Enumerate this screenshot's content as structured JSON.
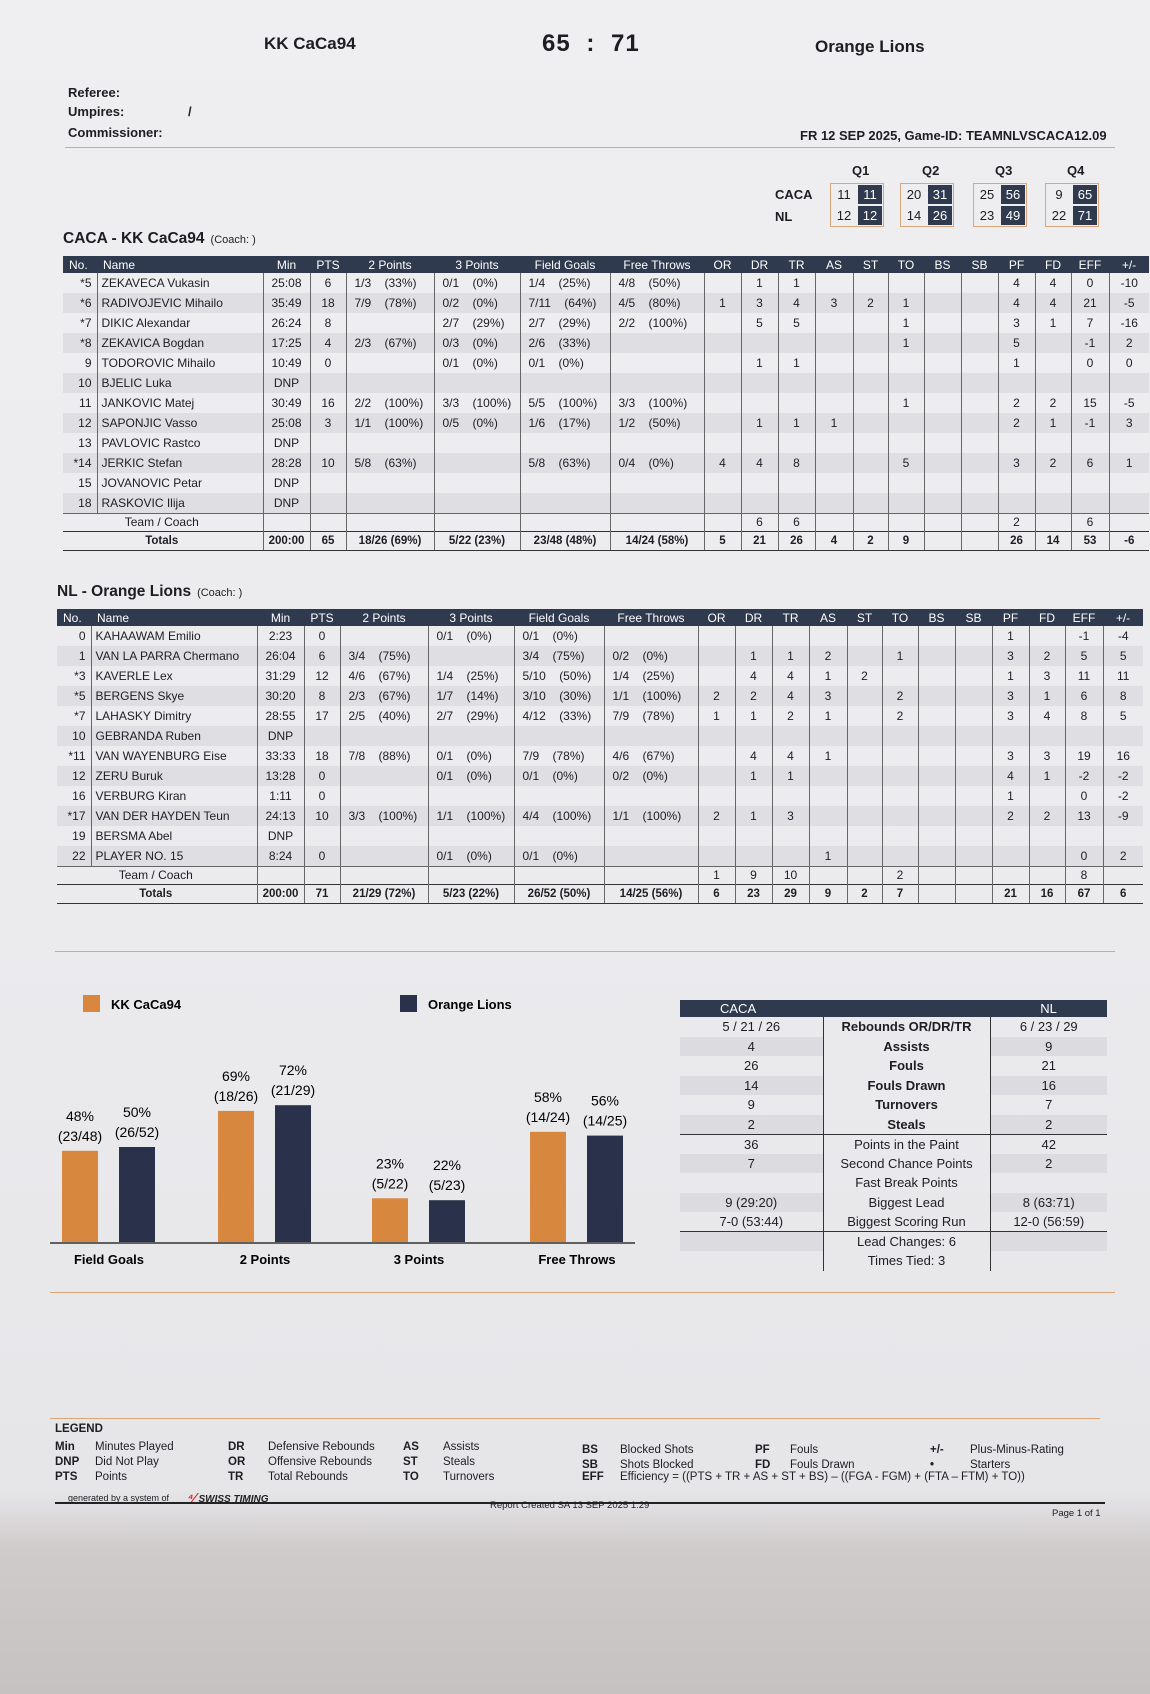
{
  "header": {
    "home": "KK CaCa94",
    "score_home": "65",
    "score_sep": ":",
    "score_away": "71",
    "away": "Orange Lions"
  },
  "officials": {
    "referee": "Referee:",
    "umpires": "Umpires:",
    "umpires_value": "/",
    "commissioner": "Commissioner:"
  },
  "game_info": "FR 12 SEP 2025,  Game-ID: TEAMNLVSCACA12.09",
  "quarters": {
    "labels": [
      "Q1",
      "Q2",
      "Q3",
      "Q4"
    ],
    "teams": [
      {
        "code": "CACA",
        "scores": [
          [
            "11",
            "11"
          ],
          [
            "20",
            "31"
          ],
          [
            "25",
            "56"
          ],
          [
            "9",
            "65"
          ]
        ]
      },
      {
        "code": "NL",
        "scores": [
          [
            "12",
            "12"
          ],
          [
            "14",
            "26"
          ],
          [
            "23",
            "49"
          ],
          [
            "22",
            "71"
          ]
        ]
      }
    ]
  },
  "columns": [
    "No.",
    "Name",
    "Min",
    "PTS",
    "2 Points",
    "3 Points",
    "Field Goals",
    "Free Throws",
    "OR",
    "DR",
    "TR",
    "AS",
    "ST",
    "TO",
    "BS",
    "SB",
    "PF",
    "FD",
    "EFF",
    "+/-"
  ],
  "teams": [
    {
      "title": "CACA - KK CaCa94",
      "coach": "(Coach: )",
      "players": [
        [
          "*5",
          "ZEKAVECA Vukasin",
          "25:08",
          "6",
          "1/3 (33%)",
          "0/1 (0%)",
          "1/4 (25%)",
          "4/8 (50%)",
          "",
          "1",
          "1",
          "",
          "",
          "",
          "",
          "",
          "4",
          "4",
          "0",
          "-10"
        ],
        [
          "*6",
          "RADIVOJEVIC Mihailo",
          "35:49",
          "18",
          "7/9 (78%)",
          "0/2 (0%)",
          "7/11 (64%)",
          "4/5 (80%)",
          "1",
          "3",
          "4",
          "3",
          "2",
          "1",
          "",
          "",
          "4",
          "4",
          "21",
          "-5"
        ],
        [
          "*7",
          "DIKIC Alexandar",
          "26:24",
          "8",
          "",
          "2/7 (29%)",
          "2/7 (29%)",
          "2/2 (100%)",
          "",
          "5",
          "5",
          "",
          "",
          "1",
          "",
          "",
          "3",
          "1",
          "7",
          "-16"
        ],
        [
          "*8",
          "ZEKAVICA Bogdan",
          "17:25",
          "4",
          "2/3 (67%)",
          "0/3 (0%)",
          "2/6 (33%)",
          "",
          "",
          "",
          "",
          "",
          "",
          "1",
          "",
          "",
          "5",
          "",
          "-1",
          "2"
        ],
        [
          "9",
          "TODOROVIC Mihailo",
          "10:49",
          "0",
          "",
          "0/1 (0%)",
          "0/1 (0%)",
          "",
          "",
          "1",
          "1",
          "",
          "",
          "",
          "",
          "",
          "1",
          "",
          "0",
          "0"
        ],
        [
          "10",
          "BJELIC Luka",
          "DNP",
          "",
          "",
          "",
          "",
          "",
          "",
          "",
          "",
          "",
          "",
          "",
          "",
          "",
          "",
          "",
          "",
          ""
        ],
        [
          "11",
          "JANKOVIC Matej",
          "30:49",
          "16",
          "2/2 (100%)",
          "3/3 (100%)",
          "5/5 (100%)",
          "3/3 (100%)",
          "",
          "",
          "",
          "",
          "",
          "1",
          "",
          "",
          "2",
          "2",
          "15",
          "-5"
        ],
        [
          "12",
          "SAPONJIC Vasso",
          "25:08",
          "3",
          "1/1 (100%)",
          "0/5 (0%)",
          "1/6 (17%)",
          "1/2 (50%)",
          "",
          "1",
          "1",
          "1",
          "",
          "",
          "",
          "",
          "2",
          "1",
          "-1",
          "3"
        ],
        [
          "13",
          "PAVLOVIC Rastco",
          "DNP",
          "",
          "",
          "",
          "",
          "",
          "",
          "",
          "",
          "",
          "",
          "",
          "",
          "",
          "",
          "",
          "",
          ""
        ],
        [
          "*14",
          "JERKIC Stefan",
          "28:28",
          "10",
          "5/8 (63%)",
          "",
          "5/8 (63%)",
          "0/4 (0%)",
          "4",
          "4",
          "8",
          "",
          "",
          "5",
          "",
          "",
          "3",
          "2",
          "6",
          "1"
        ],
        [
          "15",
          "JOVANOVIC Petar",
          "DNP",
          "",
          "",
          "",
          "",
          "",
          "",
          "",
          "",
          "",
          "",
          "",
          "",
          "",
          "",
          "",
          "",
          ""
        ],
        [
          "18",
          "RASKOVIC Ilija",
          "DNP",
          "",
          "",
          "",
          "",
          "",
          "",
          "",
          "",
          "",
          "",
          "",
          "",
          "",
          "",
          "",
          "",
          ""
        ]
      ],
      "team_row": [
        "Team / Coach",
        "",
        "",
        "",
        "",
        "",
        "",
        "",
        "6",
        "6",
        "",
        "",
        "",
        "",
        "",
        "2",
        "",
        "6",
        ""
      ],
      "totals": [
        "Totals",
        "200:00",
        "65",
        "18/26 (69%)",
        "5/22 (23%)",
        "23/48 (48%)",
        "14/24 (58%)",
        "5",
        "21",
        "26",
        "4",
        "2",
        "9",
        "",
        "",
        "26",
        "14",
        "53",
        "-6"
      ]
    },
    {
      "title": "NL - Orange Lions",
      "coach": "(Coach: )",
      "players": [
        [
          "0",
          "KAHAAWAM Emilio",
          "2:23",
          "0",
          "",
          "0/1 (0%)",
          "0/1 (0%)",
          "",
          "",
          "",
          "",
          "",
          "",
          "",
          "",
          "",
          "1",
          "",
          "-1",
          "-4"
        ],
        [
          "1",
          "VAN LA PARRA Chermano",
          "26:04",
          "6",
          "3/4 (75%)",
          "",
          "3/4 (75%)",
          "0/2 (0%)",
          "",
          "1",
          "1",
          "2",
          "",
          "1",
          "",
          "",
          "3",
          "2",
          "5",
          "5"
        ],
        [
          "*3",
          "KAVERLE Lex",
          "31:29",
          "12",
          "4/6 (67%)",
          "1/4 (25%)",
          "5/10 (50%)",
          "1/4 (25%)",
          "",
          "4",
          "4",
          "1",
          "2",
          "",
          "",
          "",
          "1",
          "3",
          "11",
          "11"
        ],
        [
          "*5",
          "BERGENS Skye",
          "30:20",
          "8",
          "2/3 (67%)",
          "1/7 (14%)",
          "3/10 (30%)",
          "1/1 (100%)",
          "2",
          "2",
          "4",
          "3",
          "",
          "2",
          "",
          "",
          "3",
          "1",
          "6",
          "8"
        ],
        [
          "*7",
          "LAHASKY Dimitry",
          "28:55",
          "17",
          "2/5 (40%)",
          "2/7 (29%)",
          "4/12 (33%)",
          "7/9 (78%)",
          "1",
          "1",
          "2",
          "1",
          "",
          "2",
          "",
          "",
          "3",
          "4",
          "8",
          "5"
        ],
        [
          "10",
          "GEBRANDA Ruben",
          "DNP",
          "",
          "",
          "",
          "",
          "",
          "",
          "",
          "",
          "",
          "",
          "",
          "",
          "",
          "",
          "",
          "",
          ""
        ],
        [
          "*11",
          "VAN WAYENBURG Eise",
          "33:33",
          "18",
          "7/8 (88%)",
          "0/1 (0%)",
          "7/9 (78%)",
          "4/6 (67%)",
          "",
          "4",
          "4",
          "1",
          "",
          "",
          "",
          "",
          "3",
          "3",
          "19",
          "16"
        ],
        [
          "12",
          "ZERU Buruk",
          "13:28",
          "0",
          "",
          "0/1 (0%)",
          "0/1 (0%)",
          "0/2 (0%)",
          "",
          "1",
          "1",
          "",
          "",
          "",
          "",
          "",
          "4",
          "1",
          "-2",
          "-2"
        ],
        [
          "16",
          "VERBURG Kiran",
          "1:11",
          "0",
          "",
          "",
          "",
          "",
          "",
          "",
          "",
          "",
          "",
          "",
          "",
          "",
          "1",
          "",
          "0",
          "-2"
        ],
        [
          "*17",
          "VAN DER HAYDEN Teun",
          "24:13",
          "10",
          "3/3 (100%)",
          "1/1 (100%)",
          "4/4 (100%)",
          "1/1 (100%)",
          "2",
          "1",
          "3",
          "",
          "",
          "",
          "",
          "",
          "2",
          "2",
          "13",
          "-9"
        ],
        [
          "19",
          "BERSMA Abel",
          "DNP",
          "",
          "",
          "",
          "",
          "",
          "",
          "",
          "",
          "",
          "",
          "",
          "",
          "",
          "",
          "",
          "",
          ""
        ],
        [
          "22",
          "PLAYER NO. 15",
          "8:24",
          "0",
          "",
          "0/1 (0%)",
          "0/1 (0%)",
          "",
          "",
          "",
          "",
          "1",
          "",
          "",
          "",
          "",
          "",
          "",
          "0",
          "2"
        ]
      ],
      "team_row": [
        "Team / Coach",
        "",
        "",
        "",
        "",
        "",
        "",
        "1",
        "9",
        "10",
        "",
        "",
        "2",
        "",
        "",
        "",
        "",
        "8",
        ""
      ],
      "totals": [
        "Totals",
        "200:00",
        "71",
        "21/29 (72%)",
        "5/23 (22%)",
        "26/52 (50%)",
        "14/25 (56%)",
        "6",
        "23",
        "29",
        "9",
        "2",
        "7",
        "",
        "",
        "21",
        "16",
        "67",
        "6"
      ]
    }
  ],
  "chart_data": {
    "type": "bar",
    "title": "",
    "xlabel": "",
    "ylabel": "",
    "ylim": [
      0,
      100
    ],
    "categories": [
      "Field Goals",
      "2 Points",
      "3 Points",
      "Free Throws"
    ],
    "series": [
      {
        "name": "KK CaCa94",
        "color": "#d8873e",
        "values": [
          48,
          69,
          23,
          58
        ],
        "labels": [
          "48%",
          "69%",
          "23%",
          "58%"
        ],
        "sublabels": [
          "(23/48)",
          "(18/26)",
          "(5/22)",
          "(14/24)"
        ]
      },
      {
        "name": "Orange Lions",
        "color": "#29324a",
        "values": [
          50,
          72,
          22,
          56
        ],
        "labels": [
          "50%",
          "72%",
          "22%",
          "56%"
        ],
        "sublabels": [
          "(26/52)",
          "(21/29)",
          "(5/23)",
          "(14/25)"
        ]
      }
    ],
    "legend": "top"
  },
  "comparison": {
    "home": "CACA",
    "away": "NL",
    "rows": [
      [
        "5 / 21 / 26",
        "Rebounds  OR/DR/TR",
        "6 / 23 / 29"
      ],
      [
        "4",
        "Assists",
        "9"
      ],
      [
        "26",
        "Fouls",
        "21"
      ],
      [
        "14",
        "Fouls Drawn",
        "16"
      ],
      [
        "9",
        "Turnovers",
        "7"
      ],
      [
        "2",
        "Steals",
        "2"
      ],
      [
        "36",
        "Points in the Paint",
        "42"
      ],
      [
        "7",
        "Second Chance Points",
        "2"
      ],
      [
        "",
        "Fast Break Points",
        ""
      ],
      [
        "9  (29:20)",
        "Biggest Lead",
        "8  (63:71)"
      ],
      [
        "7-0  (53:44)",
        "Biggest Scoring Run",
        "12-0  (56:59)"
      ],
      [
        "",
        "Lead Changes:   6",
        ""
      ],
      [
        "",
        "Times Tied:   3",
        ""
      ]
    ]
  },
  "legend": {
    "title": "LEGEND",
    "items": [
      [
        "Min",
        "Minutes Played"
      ],
      [
        "DNP",
        "Did Not Play"
      ],
      [
        "PTS",
        "Points"
      ],
      [
        "DR",
        "Defensive Rebounds"
      ],
      [
        "OR",
        "Offensive Rebounds"
      ],
      [
        "TR",
        "Total Rebounds"
      ],
      [
        "AS",
        "Assists"
      ],
      [
        "ST",
        "Steals"
      ],
      [
        "TO",
        "Turnovers"
      ],
      [
        "BS",
        "Blocked Shots"
      ],
      [
        "SB",
        "Shots Blocked"
      ],
      [
        "EFF",
        "Efficiency = ((PTS + TR + AS + ST + BS) – ((FGA - FGM) + (FTA – FTM) + TO))"
      ],
      [
        "PF",
        "Fouls"
      ],
      [
        "FD",
        "Fouls Drawn"
      ],
      [
        "+/-",
        "Plus-Minus-Rating"
      ],
      [
        "•",
        "Starters"
      ]
    ]
  },
  "footer": {
    "generated": "generated by a system of",
    "brand": "SWISS TIMING",
    "report": "Report Created  SA 13 SEP 2025 1:29",
    "page": "Page 1 of 1"
  }
}
